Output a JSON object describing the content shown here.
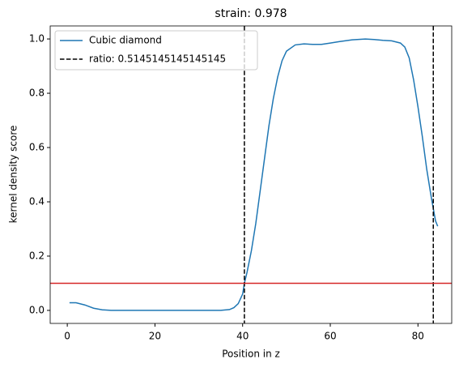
{
  "chart_data": {
    "type": "line",
    "title": "strain: 0.978",
    "xlabel": "Position in z",
    "ylabel": "kernel density score",
    "x": [
      0.5,
      2,
      4,
      6,
      8,
      10,
      20,
      30,
      35,
      37,
      38,
      39,
      40,
      40.4,
      41,
      42,
      43,
      44,
      45,
      46,
      47,
      48,
      49,
      50,
      52,
      54,
      56,
      58,
      60,
      62,
      65,
      68,
      70,
      72,
      74,
      76,
      77,
      78,
      79,
      80,
      81,
      82,
      83,
      84,
      84.5
    ],
    "series": [
      {
        "name": "Cubic diamond",
        "color": "#1f77b4",
        "values": [
          0.028,
          0.028,
          0.02,
          0.008,
          0.002,
          0,
          0,
          0,
          0,
          0.003,
          0.01,
          0.025,
          0.06,
          0.1,
          0.14,
          0.22,
          0.32,
          0.44,
          0.56,
          0.68,
          0.78,
          0.86,
          0.92,
          0.955,
          0.978,
          0.982,
          0.98,
          0.98,
          0.985,
          0.99,
          0.997,
          1.0,
          0.998,
          0.995,
          0.993,
          0.985,
          0.97,
          0.93,
          0.85,
          0.75,
          0.64,
          0.52,
          0.42,
          0.33,
          0.31
        ]
      }
    ],
    "vlines": {
      "name": "ratio: 0.5145145145145145",
      "color": "#000000",
      "values": [
        40.4,
        83.5
      ]
    },
    "hline": {
      "value": 0.1,
      "color": "#d62728"
    },
    "xlim": [
      -3.9,
      87.7
    ],
    "xticks": [
      0,
      20,
      40,
      60,
      80
    ],
    "ylim": [
      -0.048,
      1.048
    ],
    "yticks": [
      {
        "value": 0,
        "label": "0.0"
      },
      {
        "value": 0.2,
        "label": "0.2"
      },
      {
        "value": 0.4,
        "label": "0.4"
      },
      {
        "value": 0.6,
        "label": "0.6"
      },
      {
        "value": 0.8,
        "label": "0.8"
      },
      {
        "value": 1,
        "label": "1.0"
      }
    ],
    "legend": "upper left"
  }
}
